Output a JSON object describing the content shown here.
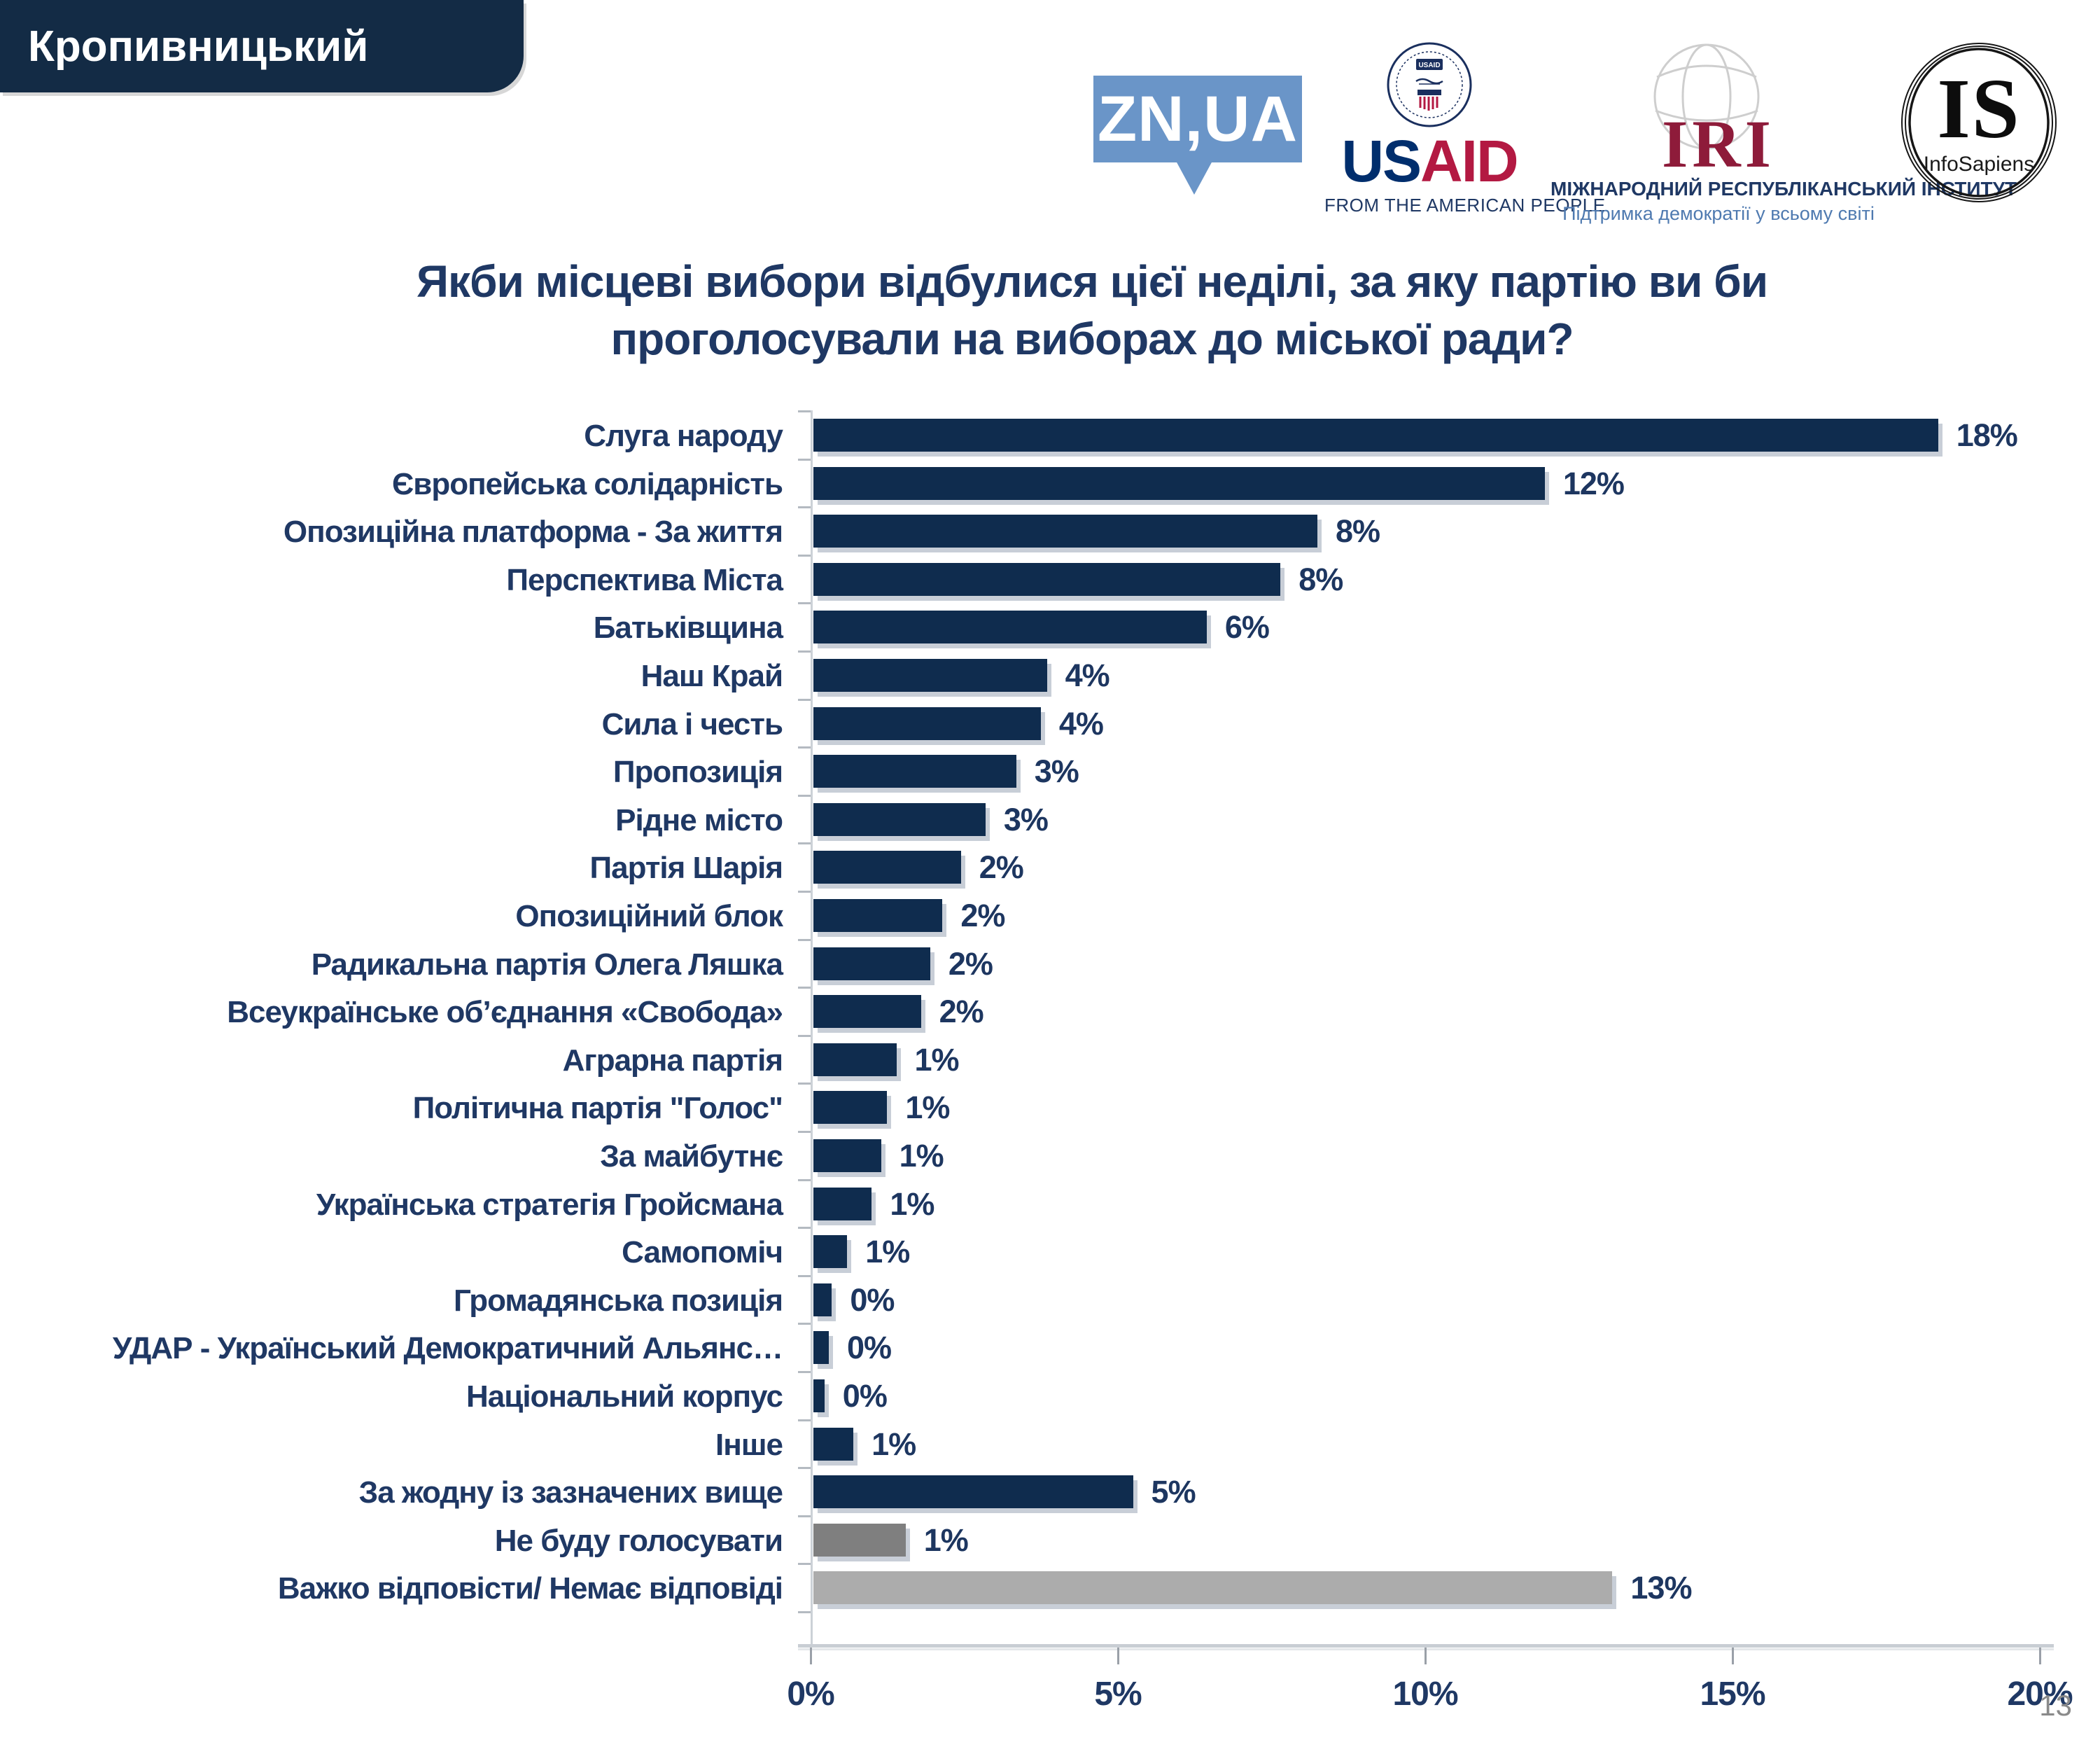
{
  "page": {
    "region_label": "Кропивницький",
    "page_number": "13"
  },
  "logos": {
    "znua": {
      "text": "ZN,UA"
    },
    "usaid": {
      "seal_text": "USAID",
      "wordmark_us": "US",
      "wordmark_aid": "AID",
      "tagline": "FROM THE AMERICAN PEOPLE"
    },
    "iri": {
      "acronym": "IRI",
      "line1": "МІЖНАРОДНИЙ РЕСПУБЛІКАНСЬКИЙ ІНСТИТУТ",
      "line2": "Підтримка демократії у всьому світі"
    },
    "is": {
      "acronym": "IS",
      "name": "InfoSapiens"
    }
  },
  "title": {
    "line1": "Якби місцеві вибори відбулися цієї неділі, за яку партію ви би",
    "line2": "проголосували на виборах до міської ради?"
  },
  "colors": {
    "header_bg": "#132b45",
    "bar_navy": "#0f2c4e",
    "bar_dark_gray": "#7f7f7f",
    "bar_light_gray": "#acacac",
    "text_navy": "#1f3864",
    "znua_blue": "#6a95c8",
    "usaid_blue": "#002e6d",
    "usaid_red": "#b31942",
    "iri_maroon": "#8e1b3a"
  },
  "chart_data": {
    "type": "bar",
    "orientation": "horizontal",
    "title": "Якби місцеві вибори відбулися цієї неділі, за яку партію ви би проголосували на виборах до міської ради?",
    "xlabel": "",
    "ylabel": "",
    "xlim": [
      0,
      20
    ],
    "x_ticks": [
      "0%",
      "5%",
      "10%",
      "15%",
      "20%"
    ],
    "grid": false,
    "legend": false,
    "categories": [
      "Слуга народу",
      "Європейська солідарність",
      "Опозиційна платформа - За життя",
      "Перспектива Міста",
      "Батьківщина",
      "Наш Край",
      "Сила і честь",
      "Пропозиція",
      "Рідне місто",
      "Партія Шарія",
      "Опозиційний блок",
      "Радикальна партія Олега Ляшка",
      "Всеукраїнське об’єднання «Свобода»",
      "Аграрна партія",
      "Політична партія \"Голос\"",
      "За майбутнє",
      "Українська стратегія Гройсмана",
      "Самопоміч",
      "Громадянська позиція",
      "УДАР - Український Демократичний Альянс…",
      "Національний корпус",
      "Інше",
      "За жодну із зазначених вище",
      "Не буду голосувати",
      "Важко відповісти/ Немає відповіді"
    ],
    "values": [
      18,
      12,
      8,
      8,
      6,
      4,
      4,
      3,
      3,
      2,
      2,
      2,
      2,
      1,
      1,
      1,
      1,
      1,
      0,
      0,
      0,
      1,
      5,
      1,
      13
    ],
    "value_labels": [
      "18%",
      "12%",
      "8%",
      "8%",
      "6%",
      "4%",
      "4%",
      "3%",
      "3%",
      "2%",
      "2%",
      "2%",
      "2%",
      "1%",
      "1%",
      "1%",
      "1%",
      "1%",
      "0%",
      "0%",
      "0%",
      "1%",
      "5%",
      "1%",
      "13%"
    ],
    "bar_lengths_pct": [
      18.3,
      11.9,
      8.2,
      7.6,
      6.4,
      3.8,
      3.7,
      3.3,
      2.8,
      2.4,
      2.1,
      1.9,
      1.75,
      1.35,
      1.2,
      1.1,
      0.95,
      0.55,
      0.3,
      0.25,
      0.18,
      0.65,
      5.2,
      1.5,
      13.0
    ],
    "bar_color_keys": [
      "navy",
      "navy",
      "navy",
      "navy",
      "navy",
      "navy",
      "navy",
      "navy",
      "navy",
      "navy",
      "navy",
      "navy",
      "navy",
      "navy",
      "navy",
      "navy",
      "navy",
      "navy",
      "navy",
      "navy",
      "navy",
      "navy",
      "navy",
      "dark_gray",
      "light_gray"
    ]
  }
}
